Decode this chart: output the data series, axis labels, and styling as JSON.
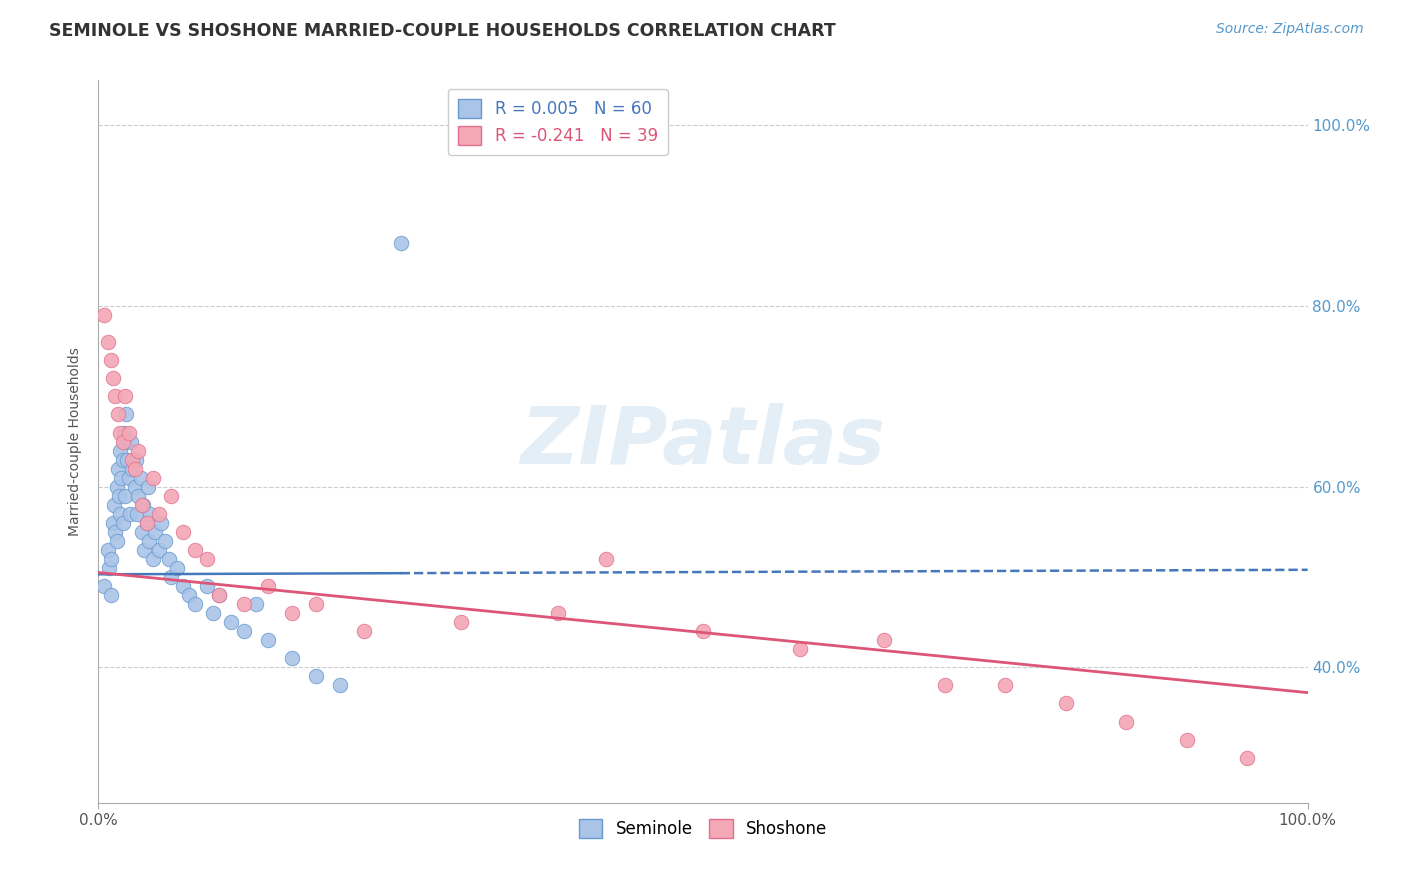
{
  "title": "SEMINOLE VS SHOSHONE MARRIED-COUPLE HOUSEHOLDS CORRELATION CHART",
  "source_text": "Source: ZipAtlas.com",
  "ylabel": "Married-couple Households",
  "xlim": [
    0.0,
    1.0
  ],
  "ylim": [
    0.25,
    1.05
  ],
  "xtick_positions": [
    0.0,
    1.0
  ],
  "xtick_labels": [
    "0.0%",
    "100.0%"
  ],
  "ytick_positions": [
    0.4,
    0.6,
    0.8,
    1.0
  ],
  "ytick_labels": [
    "40.0%",
    "60.0%",
    "80.0%",
    "100.0%"
  ],
  "grid_color": "#cccccc",
  "background_color": "#ffffff",
  "watermark_text": "ZIPatlas",
  "seminole_color": "#aac4e8",
  "shoshone_color": "#f4a7b5",
  "seminole_edge_color": "#6699cc",
  "shoshone_edge_color": "#e07090",
  "seminole_line_color": "#4477bb",
  "shoshone_line_color": "#dd5577",
  "legend_r_seminole": "R = 0.005",
  "legend_n_seminole": "N = 60",
  "legend_r_shoshone": "R = -0.241",
  "legend_n_shoshone": "N = 39",
  "seminole_line_start_y": 0.503,
  "seminole_line_end_y": 0.508,
  "shoshone_line_start_y": 0.505,
  "shoshone_line_end_y": 0.372,
  "seminole_x": [
    0.005,
    0.008,
    0.009,
    0.01,
    0.01,
    0.012,
    0.013,
    0.014,
    0.015,
    0.015,
    0.016,
    0.017,
    0.018,
    0.018,
    0.019,
    0.02,
    0.02,
    0.021,
    0.022,
    0.022,
    0.023,
    0.024,
    0.025,
    0.026,
    0.027,
    0.028,
    0.03,
    0.031,
    0.032,
    0.033,
    0.035,
    0.036,
    0.037,
    0.038,
    0.04,
    0.041,
    0.042,
    0.043,
    0.045,
    0.047,
    0.05,
    0.052,
    0.055,
    0.058,
    0.06,
    0.065,
    0.07,
    0.075,
    0.08,
    0.09,
    0.095,
    0.1,
    0.11,
    0.12,
    0.13,
    0.14,
    0.16,
    0.18,
    0.2,
    0.25
  ],
  "seminole_y": [
    0.49,
    0.53,
    0.51,
    0.48,
    0.52,
    0.56,
    0.58,
    0.55,
    0.6,
    0.54,
    0.62,
    0.59,
    0.57,
    0.64,
    0.61,
    0.63,
    0.56,
    0.66,
    0.65,
    0.59,
    0.68,
    0.63,
    0.61,
    0.57,
    0.65,
    0.62,
    0.6,
    0.63,
    0.57,
    0.59,
    0.61,
    0.55,
    0.58,
    0.53,
    0.56,
    0.6,
    0.54,
    0.57,
    0.52,
    0.55,
    0.53,
    0.56,
    0.54,
    0.52,
    0.5,
    0.51,
    0.49,
    0.48,
    0.47,
    0.49,
    0.46,
    0.48,
    0.45,
    0.44,
    0.47,
    0.43,
    0.41,
    0.39,
    0.38,
    0.87
  ],
  "shoshone_x": [
    0.005,
    0.008,
    0.01,
    0.012,
    0.014,
    0.016,
    0.018,
    0.02,
    0.022,
    0.025,
    0.028,
    0.03,
    0.033,
    0.036,
    0.04,
    0.045,
    0.05,
    0.06,
    0.07,
    0.08,
    0.09,
    0.1,
    0.12,
    0.14,
    0.16,
    0.18,
    0.22,
    0.3,
    0.38,
    0.42,
    0.5,
    0.58,
    0.65,
    0.7,
    0.75,
    0.8,
    0.85,
    0.9,
    0.95
  ],
  "shoshone_y": [
    0.79,
    0.76,
    0.74,
    0.72,
    0.7,
    0.68,
    0.66,
    0.65,
    0.7,
    0.66,
    0.63,
    0.62,
    0.64,
    0.58,
    0.56,
    0.61,
    0.57,
    0.59,
    0.55,
    0.53,
    0.52,
    0.48,
    0.47,
    0.49,
    0.46,
    0.47,
    0.44,
    0.45,
    0.46,
    0.52,
    0.44,
    0.42,
    0.43,
    0.38,
    0.38,
    0.36,
    0.34,
    0.32,
    0.3
  ]
}
